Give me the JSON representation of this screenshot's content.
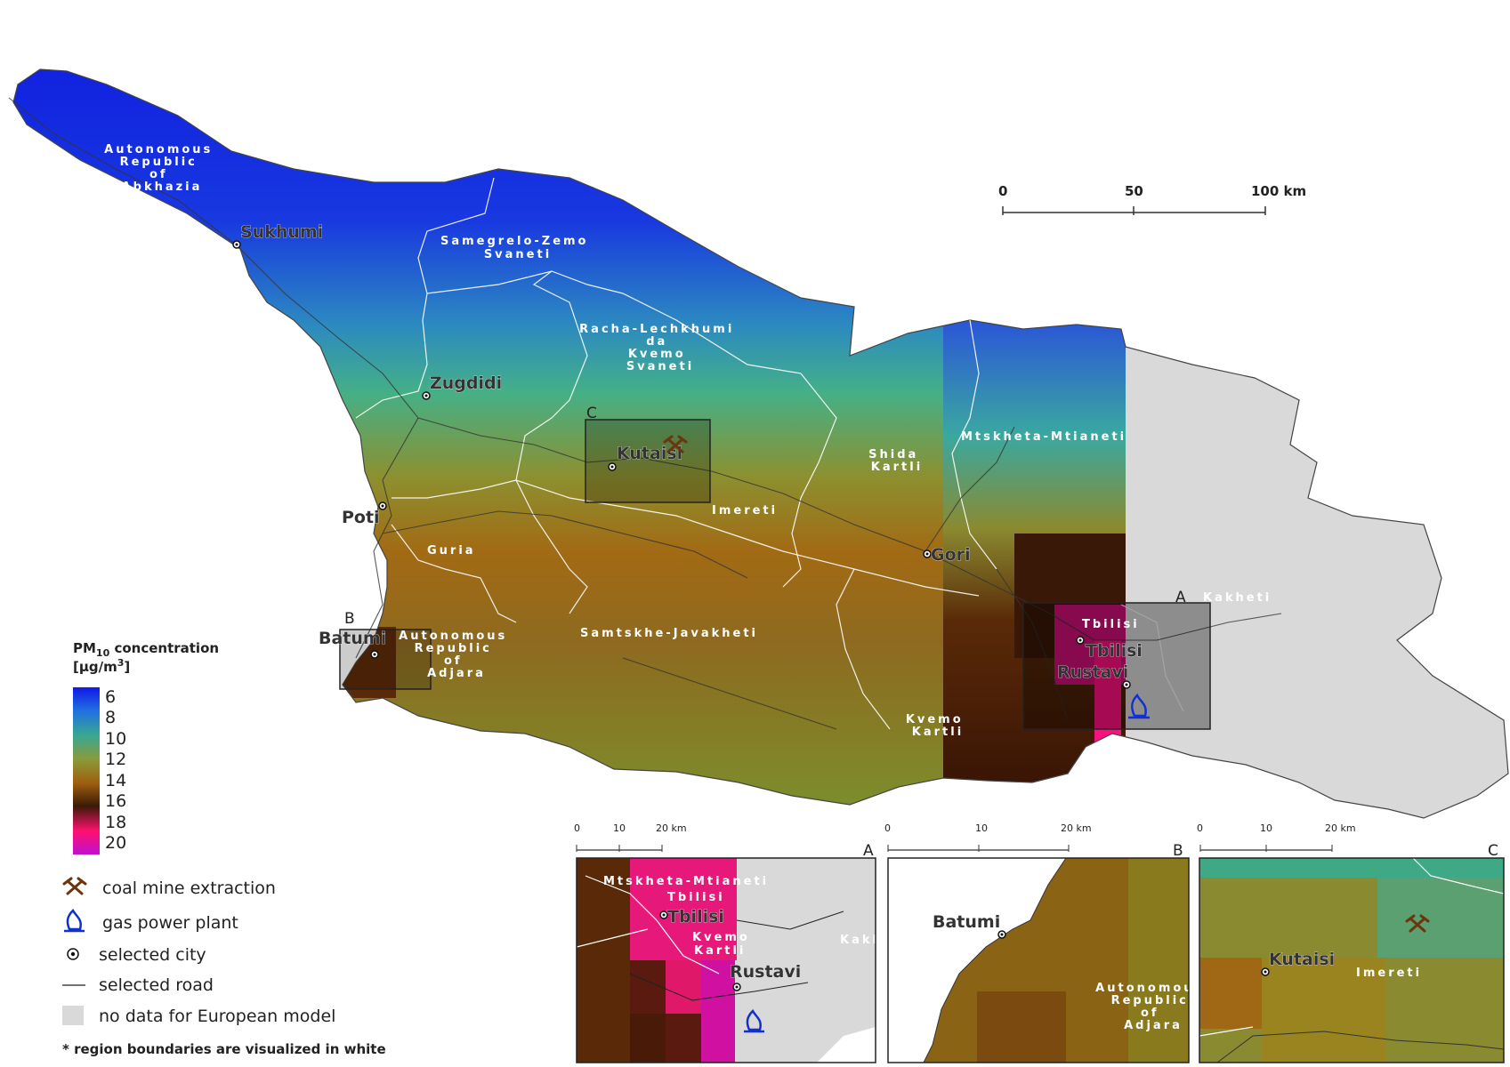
{
  "map": {
    "regions": [
      {
        "id": "abkhazia",
        "label": "Autonomous Republic of Abkhazia",
        "lines": [
          "Autonomous",
          "Republic",
          "of",
          "Abkhazia"
        ]
      },
      {
        "id": "samegrelo",
        "label": "Samegrelo-Zemo Svaneti",
        "lines": [
          "Samegrelo-Zemo",
          "Svaneti"
        ]
      },
      {
        "id": "racha",
        "label": "Racha-Lechkhumi da Kvemo Svaneti",
        "lines": [
          "Racha-Lechkhumi",
          "da",
          "Kvemo",
          "Svaneti"
        ]
      },
      {
        "id": "mtskheta",
        "label": "Mtskheta-Mtianeti",
        "lines": [
          "Mtskheta-Mtianeti"
        ]
      },
      {
        "id": "shida",
        "label": "Shida Kartli",
        "lines": [
          "Shida",
          "Kartli"
        ]
      },
      {
        "id": "imereti",
        "label": "Imereti",
        "lines": [
          "Imereti"
        ]
      },
      {
        "id": "guria",
        "label": "Guria",
        "lines": [
          "Guria"
        ]
      },
      {
        "id": "adjara",
        "label": "Autonomous Republic of Adjara",
        "lines": [
          "Autonomous",
          "Republic",
          "of",
          "Adjara"
        ]
      },
      {
        "id": "samtskhe",
        "label": "Samtskhe-Javakheti",
        "lines": [
          "Samtskhe-Javakheti"
        ]
      },
      {
        "id": "kvemo",
        "label": "Kvemo Kartli",
        "lines": [
          "Kvemo",
          "Kartli"
        ]
      },
      {
        "id": "tbilisi_r",
        "label": "Tbilisi",
        "lines": [
          "Tbilisi"
        ]
      },
      {
        "id": "kakheti",
        "label": "Kakheti",
        "lines": [
          "Kakheti"
        ]
      }
    ],
    "cities": [
      "Sukhumi",
      "Zugdidi",
      "Kutaisi",
      "Poti",
      "Batumi",
      "Gori",
      "Tbilisi",
      "Rustavi"
    ],
    "scale_bar": {
      "ticks": [
        "0",
        "50",
        "100 km"
      ]
    },
    "inset_boxes": [
      "A",
      "B",
      "C"
    ]
  },
  "legend": {
    "title": "PM",
    "title_sub": "10",
    "title_rest": " concentration",
    "unit": "[µg/m³]",
    "unit_pre": "[µg/m",
    "unit_sup": "3",
    "unit_post": "]",
    "ticks": [
      "6",
      "8",
      "10",
      "12",
      "14",
      "16",
      "18",
      "20"
    ],
    "colors": [
      "#1428e0",
      "#2c7ad8",
      "#3bb08a",
      "#8a9a3a",
      "#a36a10",
      "#3a1a05",
      "#ff1070",
      "#cc10cc"
    ],
    "items": [
      {
        "icon": "coal-mine-icon",
        "label": "coal mine extraction"
      },
      {
        "icon": "gas-plant-icon",
        "label": "gas power plant"
      },
      {
        "icon": "city-dot-icon",
        "label": "selected city"
      },
      {
        "icon": "road-line-icon",
        "label": "selected road"
      },
      {
        "icon": "no-data-swatch",
        "label": "no data for European model"
      }
    ],
    "footnote": "* region boundaries are visualized in white"
  },
  "insets": [
    {
      "letter": "A",
      "scale": [
        "0",
        "10",
        "20 km"
      ],
      "cities": [
        "Tbilisi",
        "Rustavi"
      ],
      "regions": [
        "Mtskheta-Mtianeti",
        "Tbilisi",
        "Kvemo",
        "Kartli",
        "Kakh"
      ]
    },
    {
      "letter": "B",
      "scale": [
        "0",
        "10",
        "20 km"
      ],
      "cities": [
        "Batumi"
      ],
      "regions": [
        "Autonomous",
        "Republic",
        "of",
        "Adjara"
      ]
    },
    {
      "letter": "C",
      "scale": [
        "0",
        "10",
        "20 km"
      ],
      "cities": [
        "Kutaisi"
      ],
      "regions": [
        "Imereti"
      ]
    }
  ]
}
